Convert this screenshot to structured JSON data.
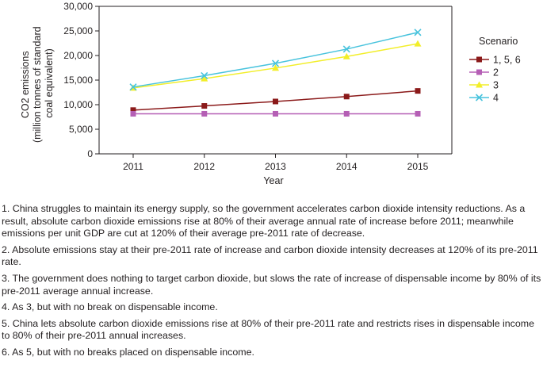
{
  "chart_data": {
    "type": "line",
    "x": [
      2011,
      2012,
      2013,
      2014,
      2015
    ],
    "xlabel": "Year",
    "ylabel_line1": "CO2 emissions",
    "ylabel_line2": "(million tonnes of standard",
    "ylabel_line3": "coal equivalent)",
    "ylim": [
      0,
      30000
    ],
    "yticks": [
      0,
      5000,
      10000,
      15000,
      20000,
      25000,
      30000
    ],
    "ytick_labels": [
      "0",
      "5,000",
      "10,000",
      "15,000",
      "20,000",
      "25,000",
      "30,000"
    ],
    "legend_title": "Scenario",
    "series": [
      {
        "name": "1, 5, 6",
        "marker": "square",
        "color": "#8b1a1a",
        "values": [
          8900,
          9750,
          10650,
          11650,
          12800
        ]
      },
      {
        "name": "2",
        "marker": "square",
        "color": "#b55fb5",
        "values": [
          8150,
          8150,
          8150,
          8150,
          8150
        ]
      },
      {
        "name": "3",
        "marker": "triangle",
        "color": "#f2ee2a",
        "values": [
          13400,
          15300,
          17450,
          19800,
          22400
        ]
      },
      {
        "name": "4",
        "marker": "x",
        "color": "#48c3dd",
        "values": [
          13600,
          15900,
          18400,
          21300,
          24700
        ]
      }
    ]
  },
  "notes": [
    "1. China struggles to maintain its energy supply, so the government accelerates carbon dioxide intensity reductions. As a result, absolute carbon dioxide emissions rise at 80% of their average annual rate of increase before 2011; meanwhile emissions per unit GDP are cut at 120% of their average pre-2011 rate of decrease.",
    "2. Absolute emissions stay at their pre-2011 rate of increase and carbon dioxide intensity decreases at 120% of its pre-2011 rate.",
    "3. The government does nothing to target carbon dioxide, but slows the rate of increase of dispensable income by 80% of its pre-2011 average annual increase.",
    "4. As 3, but with no break on dispensable income.",
    "5. China lets absolute carbon dioxide emissions rise at 80% of their pre-2011 rate and restricts rises in dispensable income to 80% of their pre-2011 annual increases.",
    "6. As 5, but with no breaks placed on dispensable income."
  ]
}
